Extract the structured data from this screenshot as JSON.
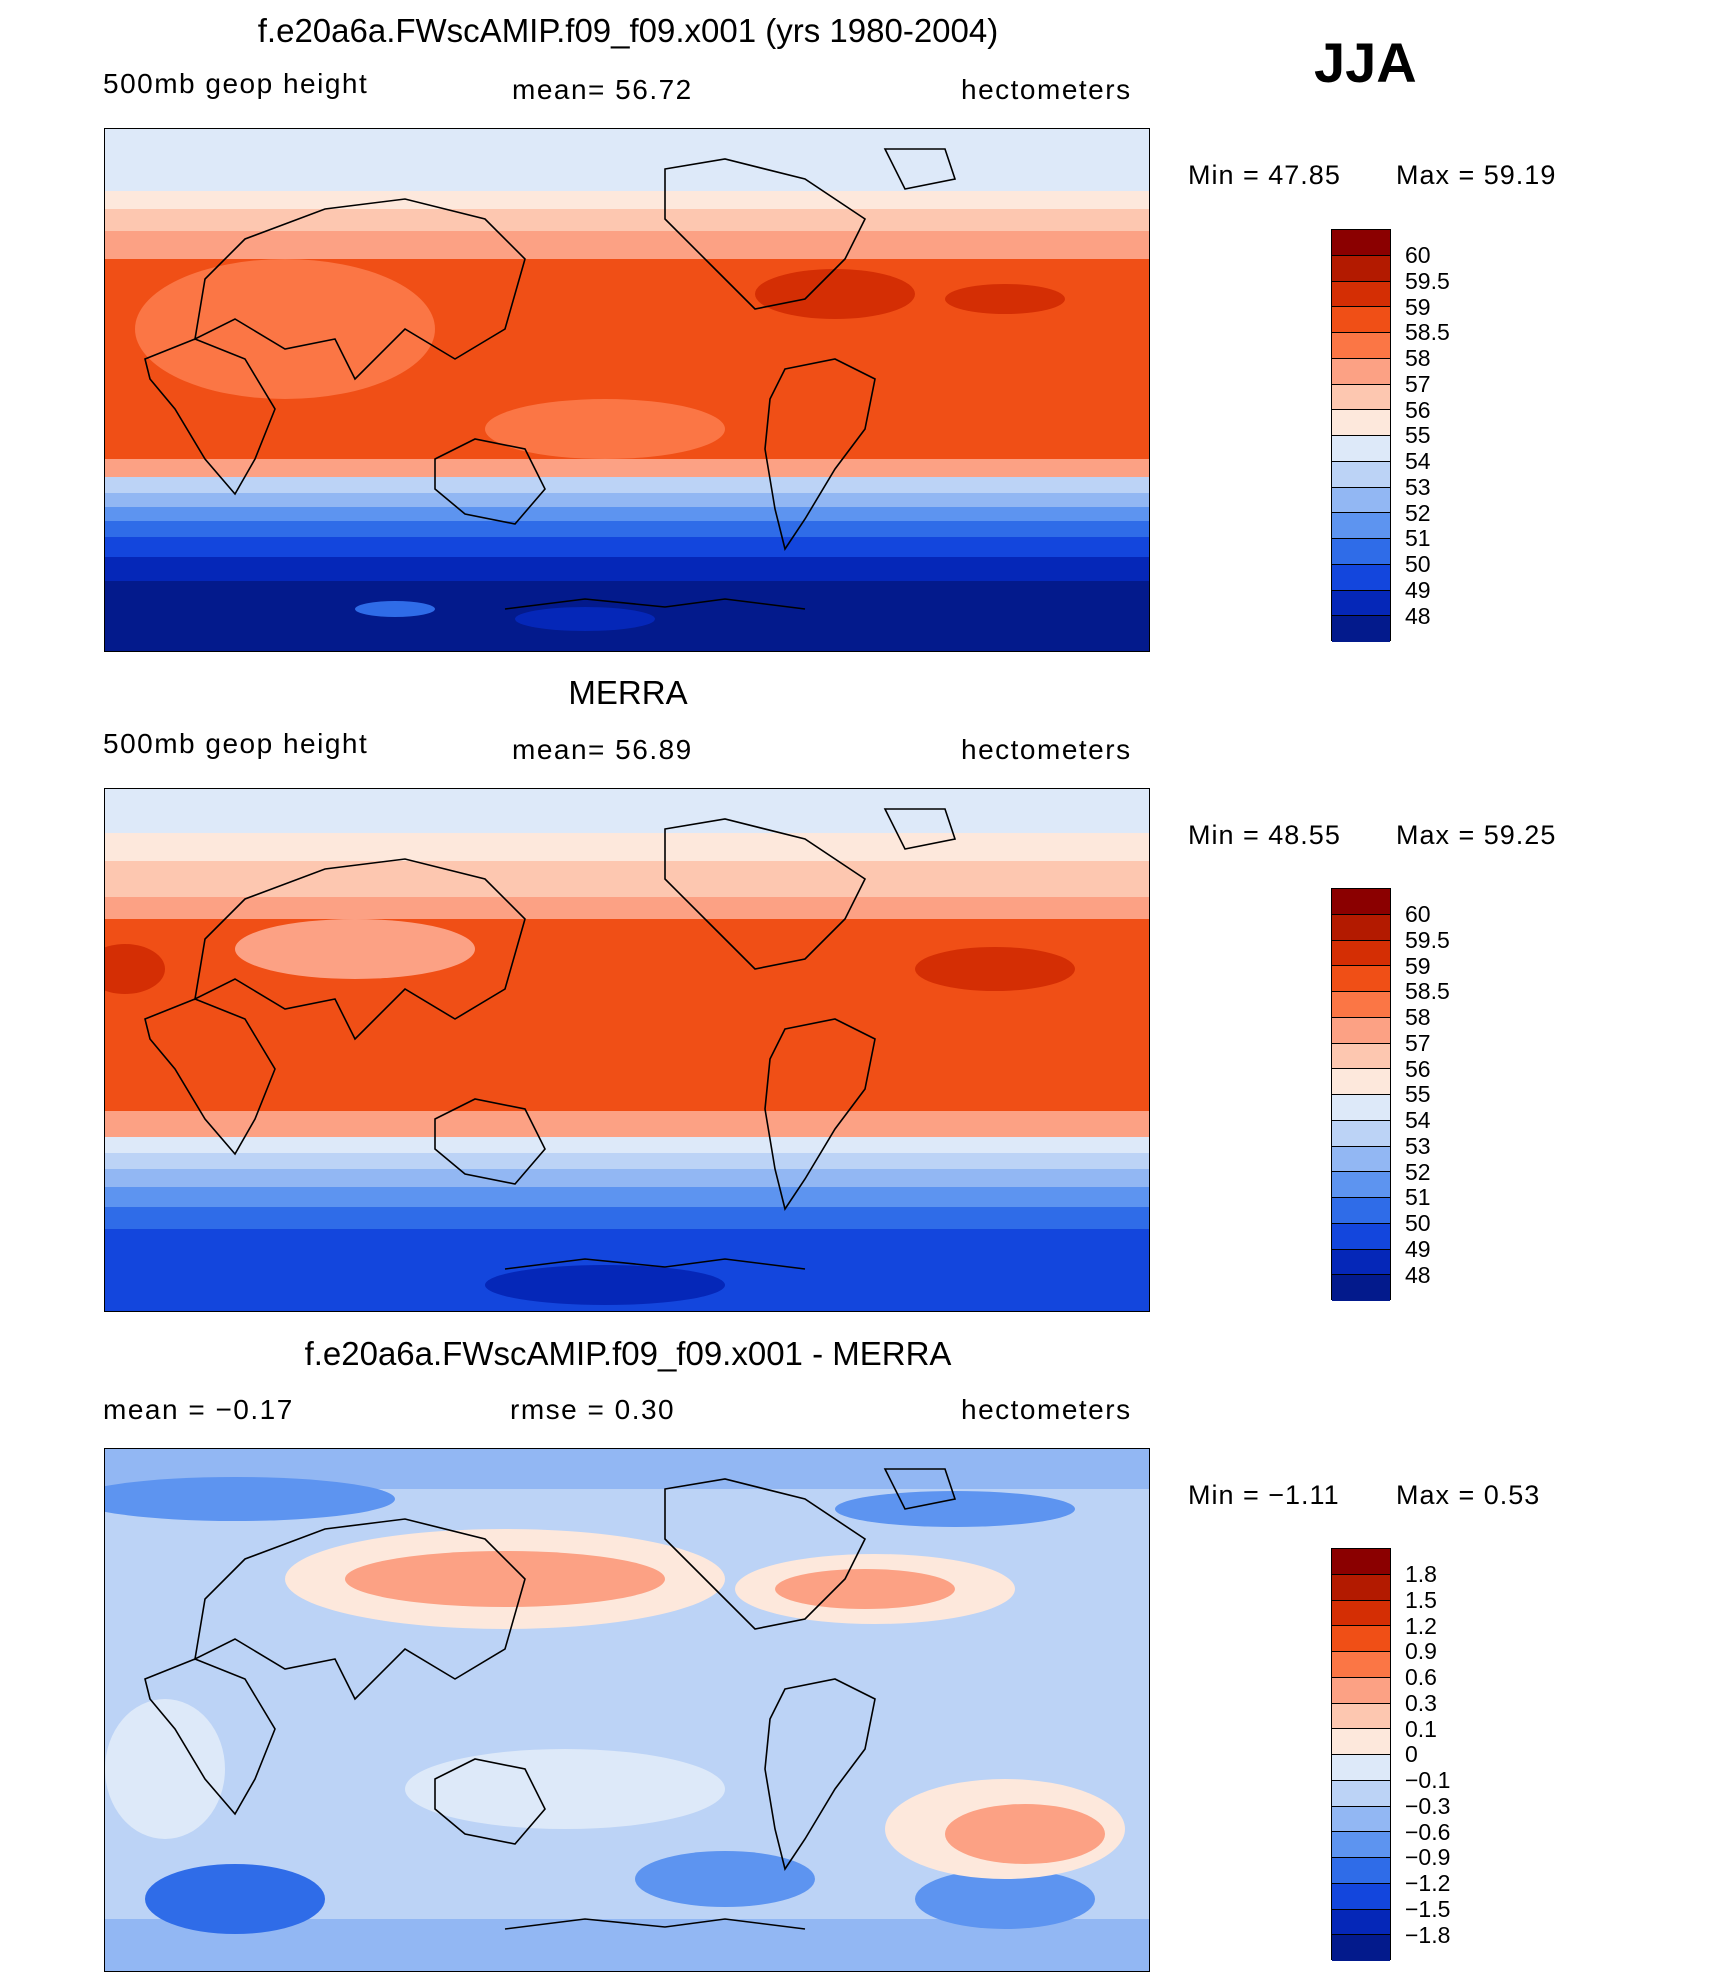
{
  "season": "JJA",
  "panels": [
    {
      "title": "f.e20a6a.FWscAMIP.f09_f09.x001 (yrs 1980-2004)",
      "left_label": "500mb  geop  height",
      "mid_label": "mean=   56.72",
      "right_label": "hectometers",
      "min_text": "Min  =    47.85",
      "max_text": "Max  =    59.19"
    },
    {
      "title": "MERRA",
      "left_label": "500mb  geop  height",
      "mid_label": "mean=   56.89",
      "right_label": "hectometers",
      "min_text": "Min  =    48.55",
      "max_text": "Max  =    59.25"
    },
    {
      "title": "f.e20a6a.FWscAMIP.f09_f09.x001 - MERRA",
      "left_label": "mean  =    −0.17",
      "mid_label": "rmse  =     0.30",
      "right_label": "hectometers",
      "min_text": "Min  =    −1.11",
      "max_text": "Max  =     0.53"
    }
  ],
  "chart_data": [
    {
      "type": "heatmap",
      "title": "f.e20a6a.FWscAMIP.f09_f09.x001 (yrs 1980-2004)",
      "variable": "500mb geop height",
      "units": "hectometers",
      "mean": 56.72,
      "min": 47.85,
      "max": 59.19,
      "colorbar_levels": [
        "60",
        "59.5",
        "59",
        "58.5",
        "58",
        "57",
        "56",
        "55",
        "54",
        "53",
        "52",
        "51",
        "50",
        "49",
        "48"
      ],
      "colorbar_colors": [
        "#8b0000",
        "#b31a00",
        "#d42e04",
        "#f04f16",
        "#fb7645",
        "#fca184",
        "#fdc7b0",
        "#fde8dc",
        "#dde9f9",
        "#bcd3f6",
        "#92b7f3",
        "#5d94f0",
        "#2f6ce8",
        "#1346dd",
        "#0527b8",
        "#031a8c"
      ]
    },
    {
      "type": "heatmap",
      "title": "MERRA",
      "variable": "500mb geop height",
      "units": "hectometers",
      "mean": 56.89,
      "min": 48.55,
      "max": 59.25,
      "colorbar_levels": [
        "60",
        "59.5",
        "59",
        "58.5",
        "58",
        "57",
        "56",
        "55",
        "54",
        "53",
        "52",
        "51",
        "50",
        "49",
        "48"
      ],
      "colorbar_colors": [
        "#8b0000",
        "#b31a00",
        "#d42e04",
        "#f04f16",
        "#fb7645",
        "#fca184",
        "#fdc7b0",
        "#fde8dc",
        "#dde9f9",
        "#bcd3f6",
        "#92b7f3",
        "#5d94f0",
        "#2f6ce8",
        "#1346dd",
        "#0527b8",
        "#031a8c"
      ]
    },
    {
      "type": "heatmap",
      "title": "f.e20a6a.FWscAMIP.f09_f09.x001 - MERRA",
      "units": "hectometers",
      "mean": -0.17,
      "rmse": 0.3,
      "min": -1.11,
      "max": 0.53,
      "colorbar_levels": [
        "1.8",
        "1.5",
        "1.2",
        "0.9",
        "0.6",
        "0.3",
        "0.1",
        "0",
        "−0.1",
        "−0.3",
        "−0.6",
        "−0.9",
        "−1.2",
        "−1.5",
        "−1.8"
      ],
      "colorbar_colors": [
        "#8b0000",
        "#b31a00",
        "#d42e04",
        "#f04f16",
        "#fb7645",
        "#fca184",
        "#fdc7b0",
        "#fde8dc",
        "#dde9f9",
        "#bcd3f6",
        "#92b7f3",
        "#5d94f0",
        "#2f6ce8",
        "#1346dd",
        "#0527b8",
        "#031a8c"
      ]
    }
  ]
}
